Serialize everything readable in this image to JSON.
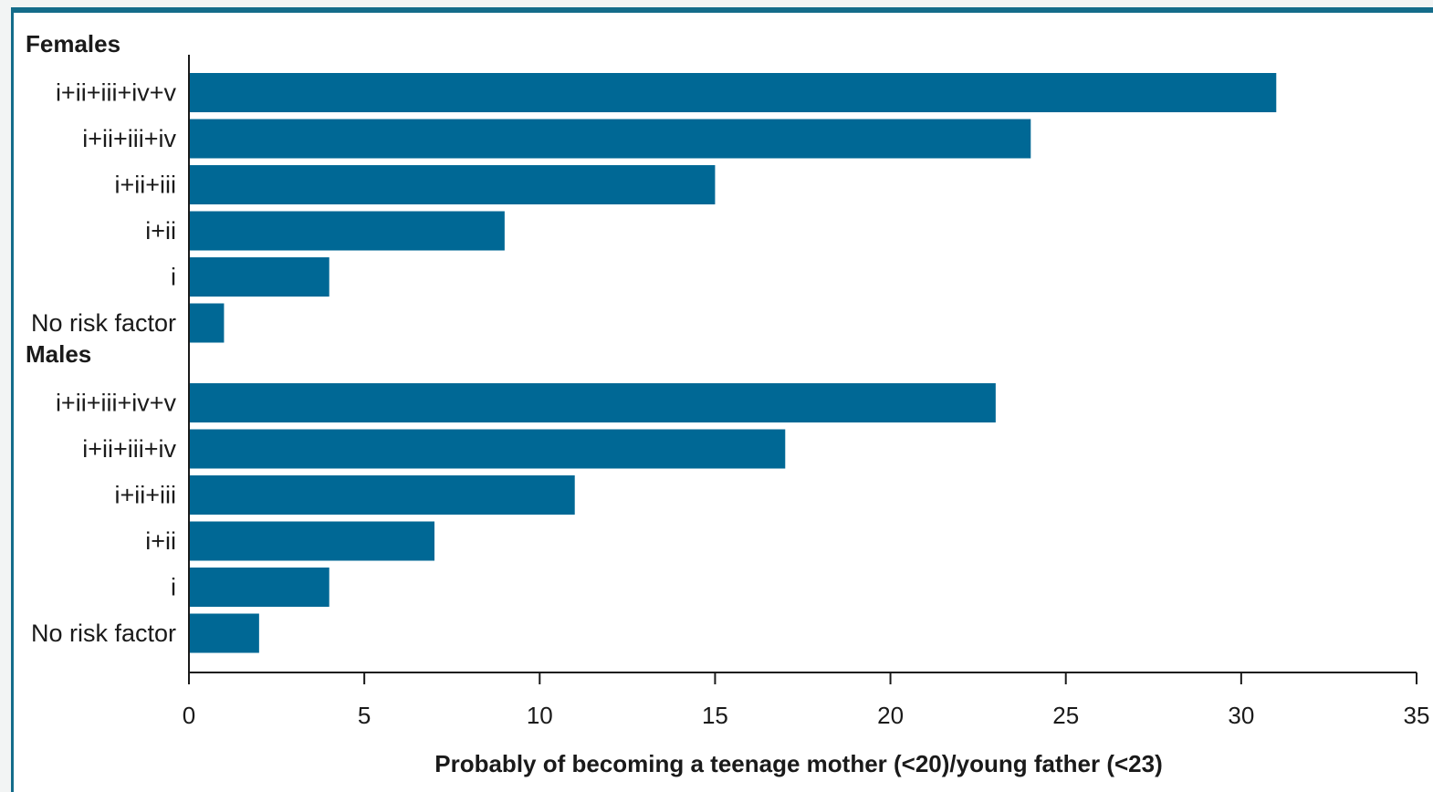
{
  "chart_data": {
    "type": "bar",
    "orientation": "horizontal",
    "bar_color": "#006895",
    "xlabel": "Probably of becoming a teenage mother (<20)/young father (<23)",
    "xlim": [
      0,
      35
    ],
    "xticks": [
      0,
      5,
      10,
      15,
      20,
      25,
      30,
      35
    ],
    "groups": [
      {
        "name": "Females",
        "categories": [
          "i+ii+iii+iv+v",
          "i+ii+iii+iv",
          "i+ii+iii",
          "i+ii",
          "i",
          "No risk factor"
        ],
        "values": [
          31,
          24,
          15,
          9,
          4,
          1
        ]
      },
      {
        "name": "Males",
        "categories": [
          "i+ii+iii+iv+v",
          "i+ii+iii+iv",
          "i+ii+iii",
          "i+ii",
          "i",
          "No risk factor"
        ],
        "values": [
          23,
          17,
          11,
          7,
          4,
          2
        ]
      }
    ]
  }
}
